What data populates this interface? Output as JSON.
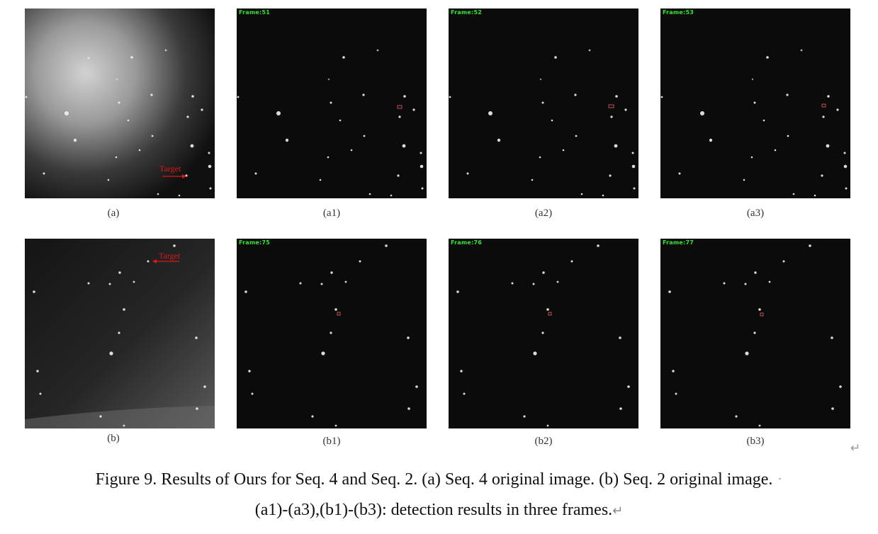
{
  "panels": {
    "a": {
      "caption": "(a)",
      "target_label": "Target"
    },
    "a1": {
      "caption": "(a1)",
      "frame": "Frame:51"
    },
    "a2": {
      "caption": "(a2)",
      "frame": "Frame:52"
    },
    "a3": {
      "caption": "(a3)",
      "frame": "Frame:53"
    },
    "b": {
      "caption": "(b)",
      "target_label": "Target"
    },
    "b1": {
      "caption": "(b1)",
      "frame": "Frame:75"
    },
    "b2": {
      "caption": "(b2)",
      "frame": "Frame:76"
    },
    "b3": {
      "caption": "(b3)",
      "frame": "Frame:77"
    }
  },
  "caption": {
    "line1": "Figure 9. Results of Ours for Seq. 4 and Seq. 2. (a) Seq. 4 original image. (b) Seq. 2 original image.",
    "line2": "(a1)-(a3),(b1)-(b3): detection results in three frames."
  },
  "marks": {
    "paragraph": "↵"
  },
  "colors": {
    "frame_text": "#2ee82e",
    "target": "#e01818",
    "detection_box": "#c0504d"
  }
}
